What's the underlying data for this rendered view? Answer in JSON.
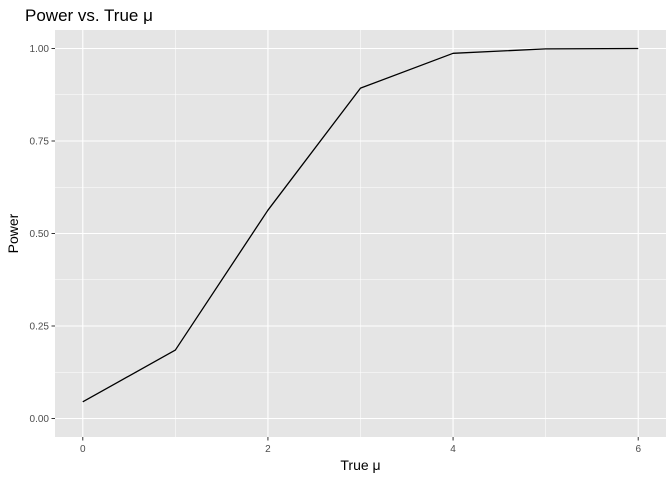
{
  "chart_data": {
    "type": "line",
    "title": "Power vs. True μ",
    "xlabel": "True μ",
    "ylabel": "Power",
    "xlim": [
      -0.3,
      6.3
    ],
    "ylim": [
      -0.05,
      1.05
    ],
    "x_ticks": [
      0,
      2,
      4,
      6
    ],
    "x_tick_labels": [
      "0",
      "2",
      "4",
      "6"
    ],
    "x_minor_gridlines": [
      1,
      3,
      5
    ],
    "y_ticks": [
      0.0,
      0.25,
      0.5,
      0.75,
      1.0
    ],
    "y_tick_labels": [
      "0.00",
      "0.25",
      "0.50",
      "0.75",
      "1.00"
    ],
    "y_minor_gridlines": [
      0.125,
      0.375,
      0.625,
      0.875
    ],
    "grid": true,
    "series": [
      {
        "x": [
          0,
          1,
          2,
          3,
          4,
          5,
          6
        ],
        "values": [
          0.045,
          0.185,
          0.563,
          0.893,
          0.987,
          0.999,
          1.0
        ]
      }
    ]
  },
  "colors": {
    "panel_background": "#e5e5e5",
    "gridline": "#ffffff",
    "line": "#000000",
    "tick_label": "#4d4d4d",
    "tick_mark": "#333333"
  }
}
